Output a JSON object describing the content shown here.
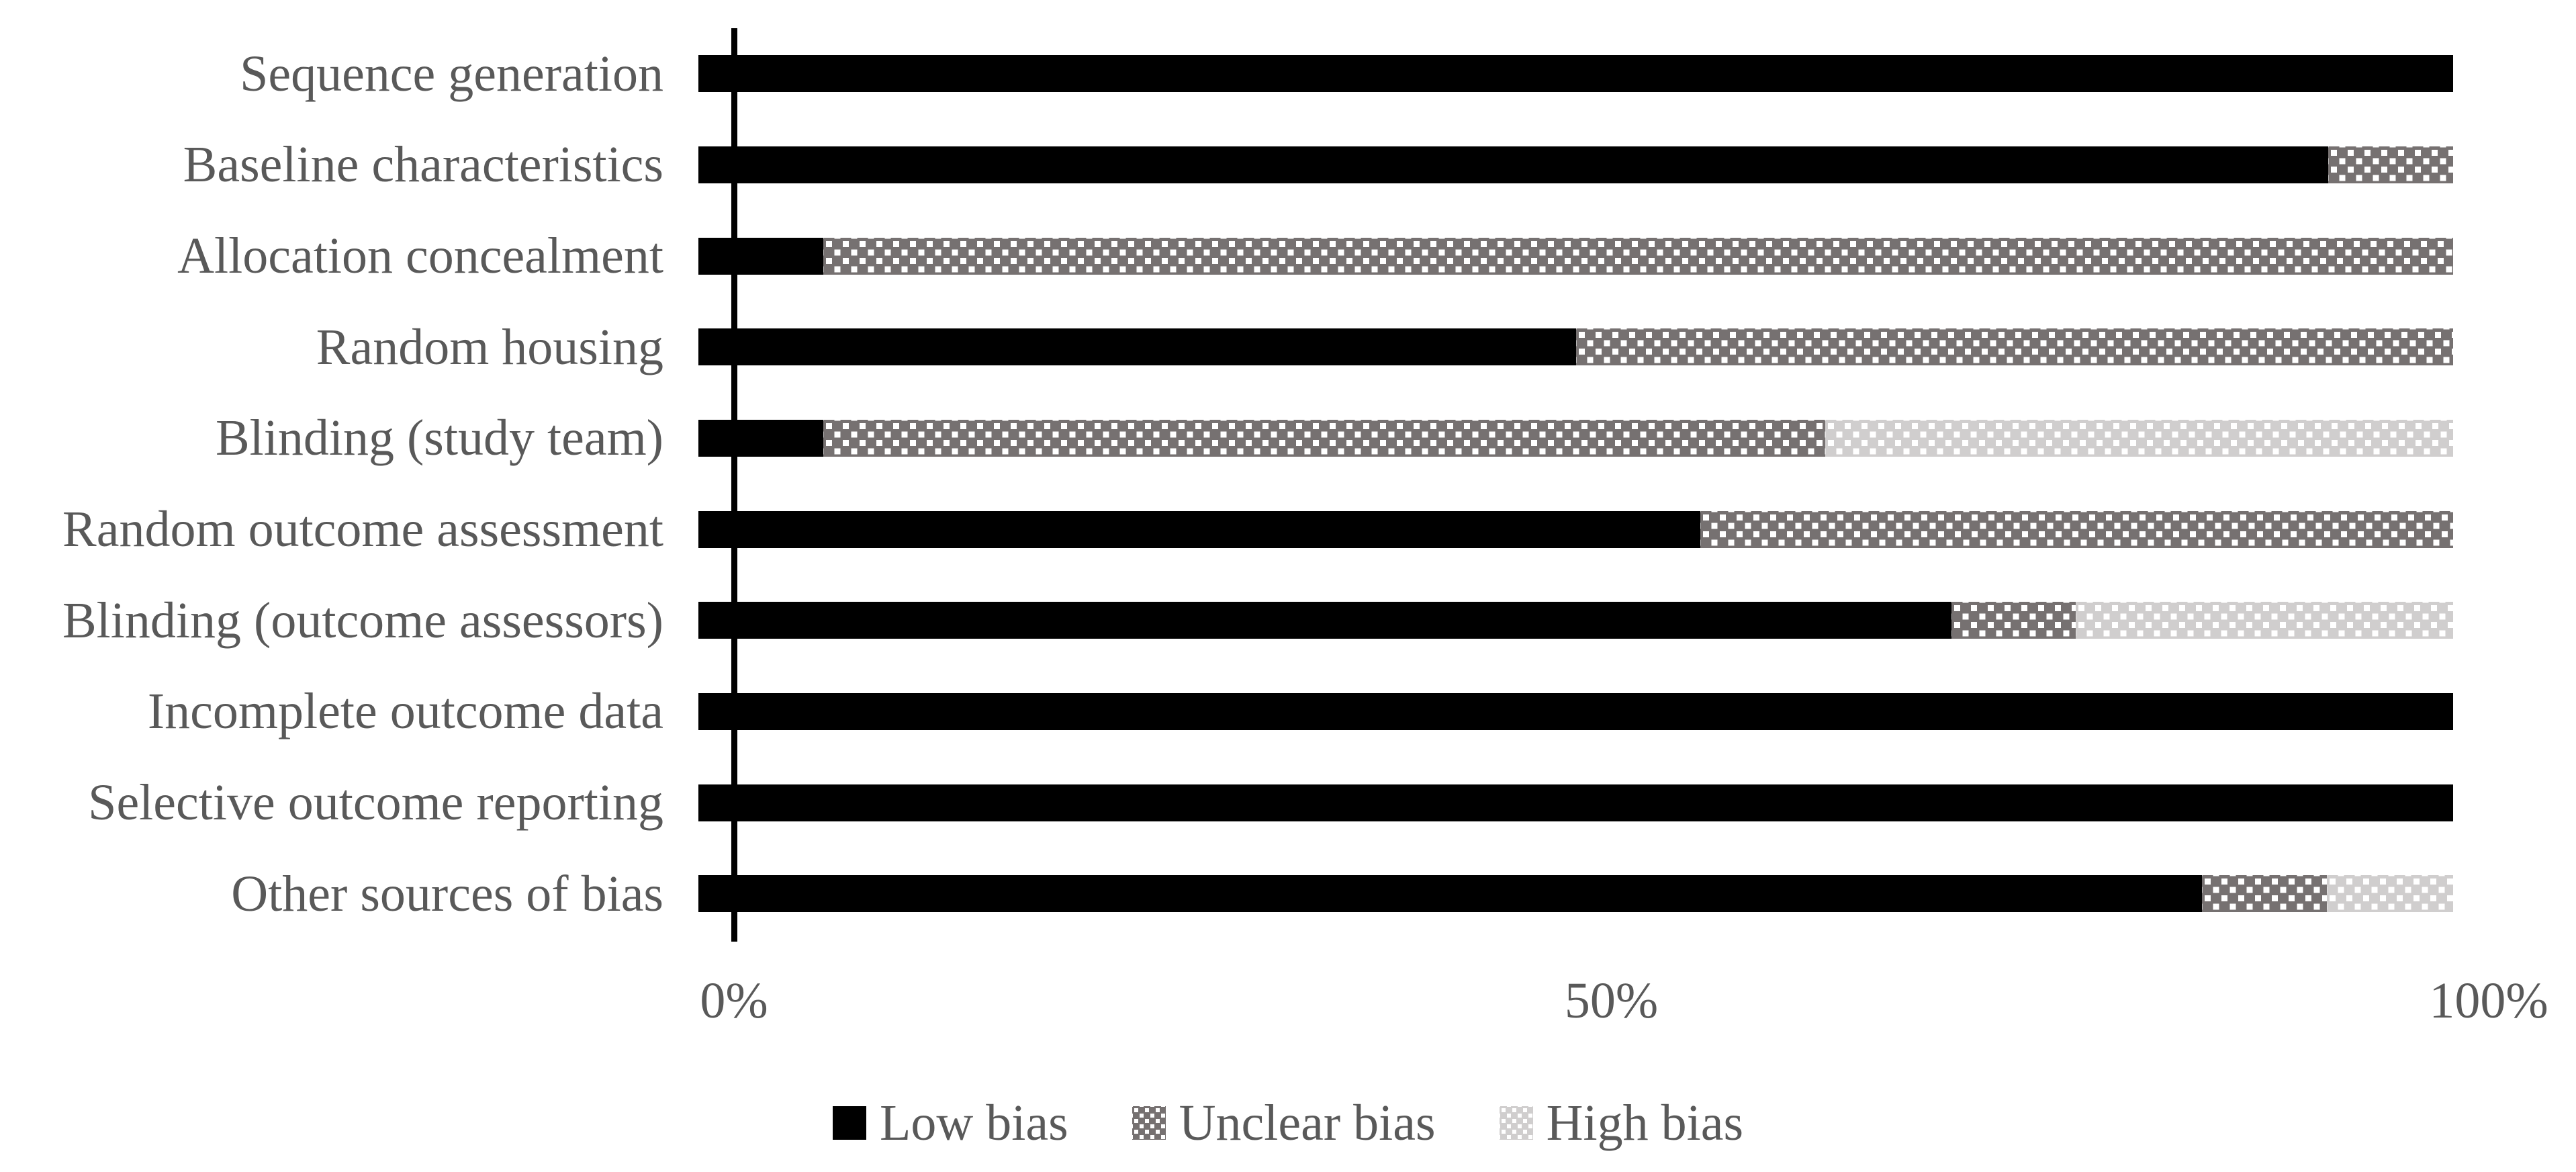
{
  "figure": {
    "background": "#ffffff",
    "text_color": "#595959",
    "axis_line_color": "#000000"
  },
  "chart_data": {
    "type": "bar",
    "orientation": "horizontal",
    "stacked": true,
    "title": "",
    "xlabel": "",
    "ylabel": "",
    "unit": "percent of studies",
    "categories": [
      "Sequence generation",
      "Baseline characteristics",
      "Allocation concealment",
      "Random housing",
      "Blinding (study team)",
      "Random outcome assessment",
      "Blinding (outcome assessors)",
      "Incomplete outcome data",
      "Selective outcome reporting",
      "Other sources of bias"
    ],
    "series": [
      {
        "name": "Low bias",
        "color": "#000000",
        "pattern": "solid",
        "values": [
          100,
          92.9,
          7.1,
          50,
          7.1,
          57.1,
          71.4,
          100,
          100,
          85.7
        ]
      },
      {
        "name": "Unclear bias",
        "color": "#767171",
        "pattern": "white-dots",
        "values": [
          0,
          7.1,
          92.9,
          50,
          57.1,
          42.9,
          7.1,
          0,
          0,
          7.1
        ]
      },
      {
        "name": "High bias",
        "color": "#d0cece",
        "pattern": "white-dots",
        "values": [
          0,
          0,
          0,
          0,
          35.7,
          0,
          21.4,
          0,
          0,
          7.1
        ]
      }
    ],
    "xlim": [
      0,
      100
    ],
    "x_ticks": [
      {
        "value": 0,
        "label": "0%"
      },
      {
        "value": 50,
        "label": "50%"
      },
      {
        "value": 100,
        "label": "100%"
      }
    ],
    "grid": false,
    "legend_position": "bottom",
    "legend": [
      "Low bias",
      "Unclear bias",
      "High bias"
    ]
  }
}
